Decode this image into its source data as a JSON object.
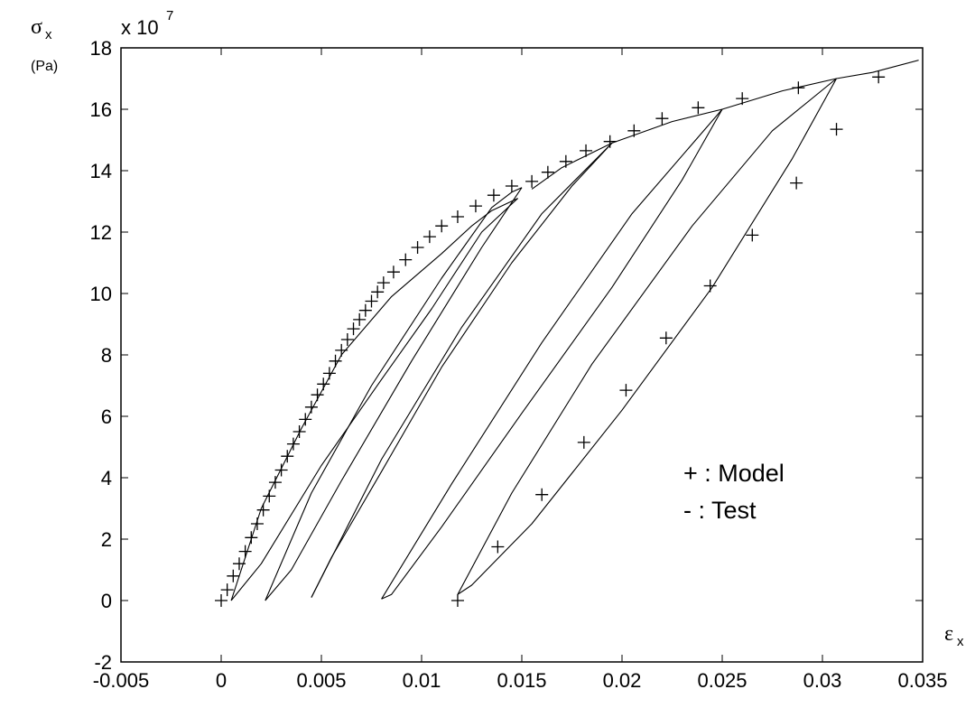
{
  "chart_data": {
    "type": "line",
    "xlim": [
      -0.005,
      0.035
    ],
    "ylim": [
      -2,
      18
    ],
    "x_ticks": [
      "-0.005",
      "0",
      "0.005",
      "0.01",
      "0.015",
      "0.02",
      "0.025",
      "0.03",
      "0.035"
    ],
    "y_ticks": [
      "-2",
      "0",
      "2",
      "4",
      "6",
      "8",
      "10",
      "12",
      "14",
      "16",
      "18"
    ],
    "x_tick_values": [
      -0.005,
      0,
      0.005,
      0.01,
      0.015,
      0.02,
      0.025,
      0.03,
      0.035
    ],
    "y_tick_values": [
      -2,
      0,
      2,
      4,
      6,
      8,
      10,
      12,
      14,
      16,
      18
    ],
    "xlabel": {
      "symbol": "ε",
      "sub": "x"
    },
    "ylabel": {
      "symbol": "σ",
      "sub": "x",
      "unit": "(Pa)"
    },
    "y_multiplier": {
      "base": "x 10",
      "exponent": "7"
    },
    "legend": {
      "position": "right-center",
      "items": [
        "+ : Model",
        "- : Test"
      ]
    },
    "grid": false,
    "series": [
      {
        "name": "Test",
        "style": "line",
        "color": "#000000",
        "segments": [
          [
            [
              0.0005,
              0
            ],
            [
              0.002,
              3
            ],
            [
              0.004,
              5.6
            ],
            [
              0.006,
              8
            ],
            [
              0.0085,
              9.9
            ],
            [
              0.011,
              11.3
            ],
            [
              0.0125,
              12.2
            ],
            [
              0.0135,
              12.7
            ],
            [
              0.0148,
              13.1
            ]
          ],
          [
            [
              0.0148,
              13.1
            ],
            [
              0.013,
              12.0
            ],
            [
              0.0105,
              9.5
            ],
            [
              0.008,
              7.2
            ],
            [
              0.005,
              4.4
            ],
            [
              0.002,
              1.2
            ],
            [
              0.0005,
              0
            ]
          ],
          [
            [
              0.0022,
              0
            ],
            [
              0.0045,
              3.5
            ],
            [
              0.0075,
              7
            ],
            [
              0.011,
              10.5
            ],
            [
              0.0135,
              12.8
            ],
            [
              0.0145,
              13.3
            ],
            [
              0.015,
              13.45
            ]
          ],
          [
            [
              0.015,
              13.45
            ],
            [
              0.013,
              11.5
            ],
            [
              0.0095,
              7.8
            ],
            [
              0.006,
              3.9
            ],
            [
              0.0035,
              1.0
            ],
            [
              0.0022,
              0
            ]
          ],
          [
            [
              0.0155,
              13.4
            ],
            [
              0.017,
              14.1
            ],
            [
              0.0195,
              14.9
            ]
          ],
          [
            [
              0.0195,
              14.9
            ],
            [
              0.0175,
              13.5
            ],
            [
              0.0145,
              11
            ],
            [
              0.011,
              7.6
            ],
            [
              0.008,
              4.2
            ],
            [
              0.0055,
              1.4
            ],
            [
              0.0045,
              0.1
            ]
          ],
          [
            [
              0.0045,
              0.1
            ],
            [
              0.008,
              4.6
            ],
            [
              0.012,
              8.9
            ],
            [
              0.016,
              12.6
            ],
            [
              0.0195,
              14.9
            ]
          ],
          [
            [
              0.0195,
              14.9
            ],
            [
              0.0225,
              15.6
            ],
            [
              0.025,
              16.0
            ]
          ],
          [
            [
              0.025,
              16.0
            ],
            [
              0.023,
              13.7
            ],
            [
              0.0195,
              10.2
            ],
            [
              0.015,
              6.1
            ],
            [
              0.011,
              2.4
            ],
            [
              0.0085,
              0.2
            ],
            [
              0.008,
              0.05
            ]
          ],
          [
            [
              0.008,
              0.05
            ],
            [
              0.0115,
              3.8
            ],
            [
              0.016,
              8.4
            ],
            [
              0.0205,
              12.6
            ],
            [
              0.025,
              16.0
            ]
          ],
          [
            [
              0.025,
              16.0
            ],
            [
              0.028,
              16.6
            ],
            [
              0.0307,
              17.0
            ]
          ],
          [
            [
              0.0307,
              17.0
            ],
            [
              0.0285,
              14.4
            ],
            [
              0.0245,
              10.2
            ],
            [
              0.02,
              6.2
            ],
            [
              0.0155,
              2.5
            ],
            [
              0.0125,
              0.5
            ],
            [
              0.0118,
              0.2
            ]
          ],
          [
            [
              0.0118,
              0.2
            ],
            [
              0.0145,
              3.5
            ],
            [
              0.0185,
              7.7
            ],
            [
              0.0235,
              12.2
            ],
            [
              0.0275,
              15.3
            ],
            [
              0.0307,
              17.0
            ]
          ],
          [
            [
              0.0307,
              17.0
            ],
            [
              0.0325,
              17.2
            ],
            [
              0.0348,
              17.6
            ]
          ]
        ]
      },
      {
        "name": "Model",
        "style": "plus",
        "color": "#000000",
        "points": [
          [
            0.0,
            0.0
          ],
          [
            0.0003,
            0.35
          ],
          [
            0.0006,
            0.8
          ],
          [
            0.0009,
            1.2
          ],
          [
            0.0012,
            1.6
          ],
          [
            0.0015,
            2.05
          ],
          [
            0.0018,
            2.5
          ],
          [
            0.0021,
            2.95
          ],
          [
            0.0024,
            3.4
          ],
          [
            0.0027,
            3.85
          ],
          [
            0.003,
            4.25
          ],
          [
            0.0033,
            4.7
          ],
          [
            0.0036,
            5.1
          ],
          [
            0.0039,
            5.5
          ],
          [
            0.0042,
            5.9
          ],
          [
            0.0045,
            6.3
          ],
          [
            0.0048,
            6.7
          ],
          [
            0.0051,
            7.05
          ],
          [
            0.0054,
            7.4
          ],
          [
            0.0057,
            7.8
          ],
          [
            0.006,
            8.15
          ],
          [
            0.0063,
            8.5
          ],
          [
            0.0066,
            8.85
          ],
          [
            0.0069,
            9.15
          ],
          [
            0.0072,
            9.45
          ],
          [
            0.0075,
            9.75
          ],
          [
            0.0078,
            10.05
          ],
          [
            0.0081,
            10.35
          ],
          [
            0.0086,
            10.7
          ],
          [
            0.0092,
            11.1
          ],
          [
            0.0098,
            11.5
          ],
          [
            0.0104,
            11.85
          ],
          [
            0.011,
            12.2
          ],
          [
            0.0118,
            12.5
          ],
          [
            0.0127,
            12.85
          ],
          [
            0.0136,
            13.2
          ],
          [
            0.0145,
            13.5
          ],
          [
            0.0155,
            13.65
          ],
          [
            0.0163,
            13.95
          ],
          [
            0.0172,
            14.3
          ],
          [
            0.0182,
            14.65
          ],
          [
            0.0194,
            14.95
          ],
          [
            0.0206,
            15.3
          ],
          [
            0.022,
            15.7
          ],
          [
            0.0238,
            16.05
          ],
          [
            0.026,
            16.35
          ],
          [
            0.0288,
            16.7
          ],
          [
            0.0328,
            17.05
          ],
          [
            0.0307,
            15.35
          ],
          [
            0.0287,
            13.6
          ],
          [
            0.0265,
            11.9
          ],
          [
            0.0244,
            10.25
          ],
          [
            0.0222,
            8.55
          ],
          [
            0.0202,
            6.85
          ],
          [
            0.0181,
            5.15
          ],
          [
            0.016,
            3.45
          ],
          [
            0.0138,
            1.75
          ],
          [
            0.0118,
            0.0
          ]
        ]
      }
    ]
  }
}
